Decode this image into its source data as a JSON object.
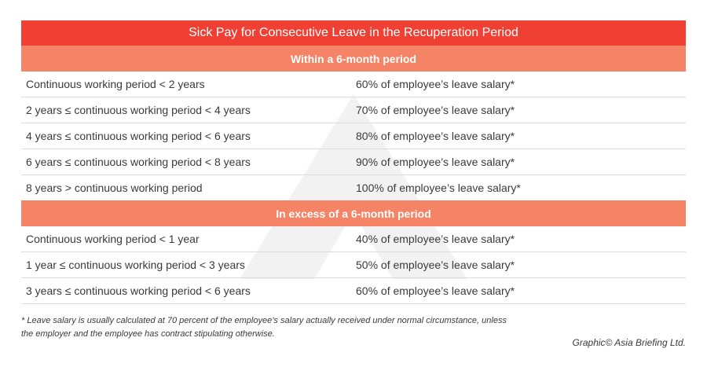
{
  "title": "Sick Pay for Consecutive Leave in the Recuperation Period",
  "sections": [
    {
      "heading": "Within a 6-month period",
      "rows": [
        {
          "period": "Continuous working period < 2 years",
          "pay": "60% of employee’s leave salary*"
        },
        {
          "period": "2 years ≤ continuous working period < 4 years",
          "pay": "70% of employee’s leave salary*"
        },
        {
          "period": "4 years ≤ continuous working period < 6 years",
          "pay": "80% of employee’s leave salary*"
        },
        {
          "period": "6 years ≤ continuous working period < 8 years",
          "pay": "90% of employee’s leave salary*"
        },
        {
          "period": "8 years > continuous working period",
          "pay": "100% of employee’s leave salary*"
        }
      ]
    },
    {
      "heading": "In excess of a 6-month period",
      "rows": [
        {
          "period": "Continuous working period < 1 year",
          "pay": "40% of employee’s leave salary*"
        },
        {
          "period": "1 year ≤ continuous working period < 3 years",
          "pay": "50% of employee’s leave salary*"
        },
        {
          "period": "3 years ≤ continuous working period < 6 years",
          "pay": "60% of employee’s leave salary*"
        }
      ]
    }
  ],
  "footnote": {
    "line1": "* Leave salary is usually calculated at 70 percent of the employee’s salary actually received under normal circumstance, unless",
    "line2": "the employer and the employee has contract stipulating otherwise."
  },
  "credit": "Graphic© Asia Briefing Ltd.",
  "colors": {
    "title_bg": "#ef4033",
    "section_bg": "#f58466"
  }
}
